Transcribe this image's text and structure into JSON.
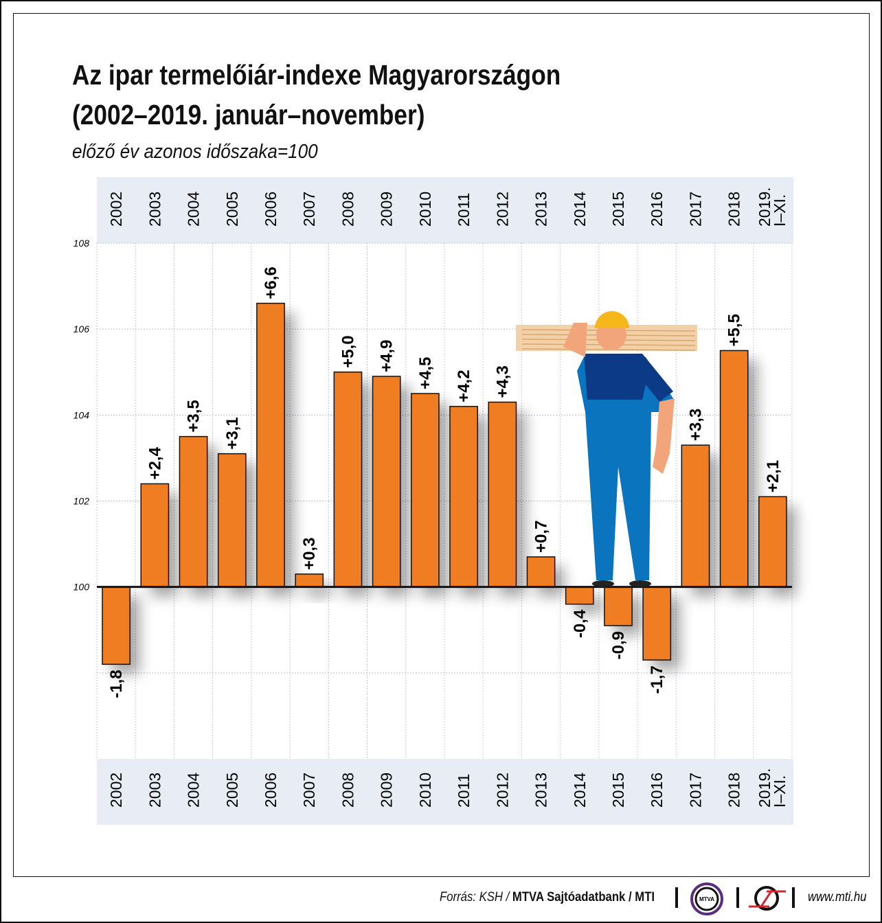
{
  "chart_data": {
    "type": "bar",
    "title": "Az ipar termelőiár-indexe Magyarországon (2002–2019. január–november)",
    "title_lines": [
      "Az ipar termelőiár-indexe Magyarországon",
      "(2002–2019. január–november)"
    ],
    "subtitle": "előző év azonos időszaka=100",
    "categories": [
      "2002",
      "2003",
      "2004",
      "2005",
      "2006",
      "2007",
      "2008",
      "2009",
      "2010",
      "2011",
      "2012",
      "2013",
      "2014",
      "2015",
      "2016",
      "2017",
      "2018",
      "2019. I–XI."
    ],
    "category_lines": [
      [
        "2002"
      ],
      [
        "2003"
      ],
      [
        "2004"
      ],
      [
        "2005"
      ],
      [
        "2006"
      ],
      [
        "2007"
      ],
      [
        "2008"
      ],
      [
        "2009"
      ],
      [
        "2010"
      ],
      [
        "2011"
      ],
      [
        "2012"
      ],
      [
        "2013"
      ],
      [
        "2014"
      ],
      [
        "2015"
      ],
      [
        "2016"
      ],
      [
        "2017"
      ],
      [
        "2018"
      ],
      [
        "2019.",
        "I–XI."
      ]
    ],
    "values": [
      98.2,
      102.4,
      103.5,
      103.1,
      106.6,
      100.3,
      105.0,
      104.9,
      104.5,
      104.2,
      104.3,
      100.7,
      99.6,
      99.1,
      98.3,
      103.3,
      105.5,
      102.1
    ],
    "data_labels": [
      "-1,8",
      "+2,4",
      "+3,5",
      "+3,1",
      "+6,6",
      "+0,3",
      "+5,0",
      "+4,9",
      "+4,5",
      "+4,2",
      "+4,3",
      "+0,7",
      "-0,4",
      "-0,9",
      "-1,7",
      "+3,3",
      "+5,5",
      "+2,1"
    ],
    "baseline": 100,
    "ylim": [
      96,
      108
    ],
    "yticks": [
      100,
      102,
      104,
      106,
      108
    ],
    "ytick_labels": [
      "100",
      "102",
      "104",
      "106",
      "108"
    ],
    "grid": true,
    "bar_color": "#f07d22",
    "category_band_color": "#e8ecf4",
    "xlabel": "",
    "ylabel": ""
  },
  "footer": {
    "source_prefix": "Forrás: KSH / ",
    "source_bold": "MTVA Sajtóadatbank / MTI",
    "mtva_logo_text": "MTVA",
    "url": "www.mti.hu"
  }
}
